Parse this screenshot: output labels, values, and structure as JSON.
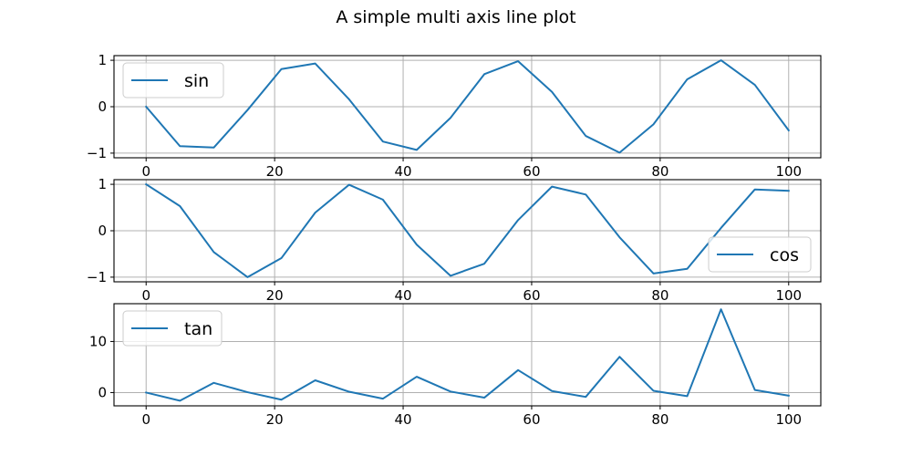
{
  "chart_data": {
    "type": "line",
    "title": "A simple multi axis line plot",
    "colors": {
      "series": "#1f77b4",
      "grid": "#b0b0b0"
    },
    "grid": true,
    "x": [
      0,
      5.26,
      10.53,
      15.79,
      21.05,
      26.32,
      31.58,
      36.84,
      42.11,
      47.37,
      52.63,
      57.89,
      63.16,
      68.42,
      73.68,
      78.95,
      84.21,
      89.47,
      94.74,
      100
    ],
    "subplots": [
      {
        "name": "sin",
        "legend_loc": "upper left",
        "xlim": [
          -5,
          105
        ],
        "ylim": [
          -1.1,
          1.1
        ],
        "xticks": [
          0,
          20,
          40,
          60,
          80,
          100
        ],
        "yticks": [
          -1,
          0,
          1
        ],
        "yticklabels": [
          "−1",
          "0",
          "1"
        ],
        "values": [
          0,
          -0.85,
          -0.88,
          -0.07,
          0.81,
          0.93,
          0.16,
          -0.75,
          -0.93,
          -0.24,
          0.7,
          0.98,
          0.32,
          -0.63,
          -0.99,
          -0.38,
          0.59,
          1.0,
          0.47,
          -0.51
        ]
      },
      {
        "name": "cos",
        "legend_loc": "lower right",
        "xlim": [
          -5,
          105
        ],
        "ylim": [
          -1.1,
          1.1
        ],
        "xticks": [
          0,
          20,
          40,
          60,
          80,
          100
        ],
        "yticks": [
          -1,
          0,
          1
        ],
        "yticklabels": [
          "−1",
          "0",
          "1"
        ],
        "values": [
          1.0,
          0.53,
          -0.46,
          -1.0,
          -0.59,
          0.39,
          0.99,
          0.67,
          -0.3,
          -0.97,
          -0.71,
          0.23,
          0.95,
          0.78,
          -0.14,
          -0.92,
          -0.82,
          0.06,
          0.89,
          0.86
        ]
      },
      {
        "name": "tan",
        "legend_loc": "upper left",
        "xlim": [
          -5,
          105
        ],
        "ylim": [
          -2.6,
          17.4
        ],
        "xticks": [
          0,
          20,
          40,
          60,
          80,
          100
        ],
        "yticks": [
          0,
          10
        ],
        "yticklabels": [
          "0",
          "10"
        ],
        "values": [
          0,
          -1.6,
          1.9,
          0.07,
          -1.4,
          2.4,
          0.16,
          -1.2,
          3.1,
          0.2,
          -1.0,
          4.4,
          0.3,
          -0.85,
          7.0,
          0.35,
          -0.7,
          16.3,
          0.5,
          -0.6
        ]
      }
    ]
  }
}
